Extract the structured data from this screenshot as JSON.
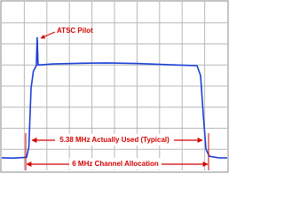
{
  "chart_data": {
    "type": "line",
    "color": "#1a3fd6",
    "x": [
      0,
      0.5,
      1.1,
      1.2,
      1.3,
      1.4,
      1.53,
      1.57,
      1.61,
      2.28,
      3.5,
      4.65,
      6,
      7.8,
      8.66,
      8.82,
      8.94,
      9.06,
      9.21,
      9.6,
      10
    ],
    "values": [
      0.6,
      0.58,
      0.62,
      1.1,
      3.9,
      4.7,
      4.97,
      6.3,
      5.0,
      5.05,
      5.08,
      5.1,
      5.07,
      5.0,
      4.97,
      4.5,
      2.6,
      1.0,
      0.67,
      0.6,
      0.59
    ],
    "xlim": [
      0,
      10
    ],
    "ylim": [
      0,
      8
    ],
    "annotations": [
      "ATSC Pilot",
      "5.38 MHz Actually Used (Typical)",
      "6 MHz Channel Allocation"
    ],
    "annotation_color": "#d40000"
  }
}
